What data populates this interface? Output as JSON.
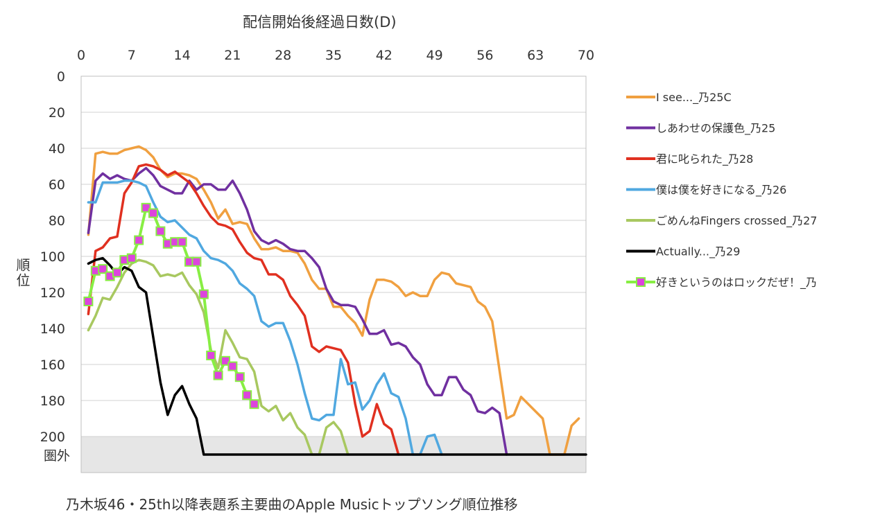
{
  "chart_data": {
    "type": "line",
    "title": "乃木坂46・25th以降表題系主要曲のApple Musicトップソング順位推移",
    "xlabel": "配信開始後経過日数(D)",
    "ylabel": "順位",
    "xlim": [
      0,
      70
    ],
    "ylim": [
      0,
      220
    ],
    "y_inverted": true,
    "x_ticks": [
      0,
      7,
      14,
      21,
      28,
      35,
      42,
      49,
      56,
      63,
      70
    ],
    "y_ticks": [
      0,
      20,
      40,
      60,
      80,
      100,
      120,
      140,
      160,
      180,
      200
    ],
    "out_of_rank_label": "圏外",
    "out_of_rank_value": 210,
    "out_of_rank_band": [
      200,
      220
    ],
    "legend_position": "right",
    "series": [
      {
        "name": "I see..._乃25C",
        "color": "#f0a040",
        "marker": "none",
        "points": [
          [
            1,
            88
          ],
          [
            2,
            43
          ],
          [
            3,
            42
          ],
          [
            4,
            43
          ],
          [
            5,
            43
          ],
          [
            6,
            41
          ],
          [
            7,
            40
          ],
          [
            8,
            39
          ],
          [
            9,
            41
          ],
          [
            10,
            45
          ],
          [
            11,
            52
          ],
          [
            12,
            56
          ],
          [
            13,
            54
          ],
          [
            14,
            54
          ],
          [
            15,
            55
          ],
          [
            16,
            57
          ],
          [
            17,
            63
          ],
          [
            18,
            70
          ],
          [
            19,
            79
          ],
          [
            20,
            74
          ],
          [
            21,
            82
          ],
          [
            22,
            81
          ],
          [
            23,
            82
          ],
          [
            24,
            90
          ],
          [
            25,
            96
          ],
          [
            26,
            96
          ],
          [
            27,
            95
          ],
          [
            28,
            97
          ],
          [
            29,
            97
          ],
          [
            30,
            98
          ],
          [
            31,
            104
          ],
          [
            32,
            113
          ],
          [
            33,
            118
          ],
          [
            34,
            118
          ],
          [
            35,
            128
          ],
          [
            36,
            128
          ],
          [
            37,
            133
          ],
          [
            38,
            137
          ],
          [
            39,
            144
          ],
          [
            40,
            124
          ],
          [
            41,
            113
          ],
          [
            42,
            113
          ],
          [
            43,
            114
          ],
          [
            44,
            117
          ],
          [
            45,
            122
          ],
          [
            46,
            120
          ],
          [
            47,
            122
          ],
          [
            48,
            122
          ],
          [
            49,
            113
          ],
          [
            50,
            109
          ],
          [
            51,
            110
          ],
          [
            52,
            115
          ],
          [
            53,
            116
          ],
          [
            54,
            117
          ],
          [
            55,
            125
          ],
          [
            56,
            128
          ],
          [
            57,
            136
          ],
          [
            58,
            163
          ],
          [
            59,
            190
          ],
          [
            60,
            188
          ],
          [
            61,
            178
          ],
          [
            62,
            182
          ],
          [
            63,
            186
          ],
          [
            64,
            190
          ],
          [
            65,
            210
          ],
          [
            66,
            210
          ],
          [
            67,
            210
          ],
          [
            68,
            194
          ],
          [
            69,
            190
          ]
        ]
      },
      {
        "name": "しあわせの保護色_乃25",
        "color": "#7030a0",
        "marker": "none",
        "points": [
          [
            1,
            87
          ],
          [
            2,
            58
          ],
          [
            3,
            54
          ],
          [
            4,
            57
          ],
          [
            5,
            55
          ],
          [
            6,
            57
          ],
          [
            7,
            58
          ],
          [
            8,
            54
          ],
          [
            9,
            51
          ],
          [
            10,
            55
          ],
          [
            11,
            61
          ],
          [
            12,
            63
          ],
          [
            13,
            65
          ],
          [
            14,
            65
          ],
          [
            15,
            58
          ],
          [
            16,
            63
          ],
          [
            17,
            60
          ],
          [
            18,
            60
          ],
          [
            19,
            63
          ],
          [
            20,
            63
          ],
          [
            21,
            58
          ],
          [
            22,
            65
          ],
          [
            23,
            74
          ],
          [
            24,
            86
          ],
          [
            25,
            91
          ],
          [
            26,
            93
          ],
          [
            27,
            91
          ],
          [
            28,
            93
          ],
          [
            29,
            96
          ],
          [
            30,
            97
          ],
          [
            31,
            97
          ],
          [
            32,
            101
          ],
          [
            33,
            106
          ],
          [
            34,
            118
          ],
          [
            35,
            125
          ],
          [
            36,
            127
          ],
          [
            37,
            127
          ],
          [
            38,
            128
          ],
          [
            39,
            135
          ],
          [
            40,
            143
          ],
          [
            41,
            143
          ],
          [
            42,
            141
          ],
          [
            43,
            149
          ],
          [
            44,
            148
          ],
          [
            45,
            150
          ],
          [
            46,
            156
          ],
          [
            47,
            160
          ],
          [
            48,
            171
          ],
          [
            49,
            177
          ],
          [
            50,
            177
          ],
          [
            51,
            167
          ],
          [
            52,
            167
          ],
          [
            53,
            174
          ],
          [
            54,
            177
          ],
          [
            55,
            186
          ],
          [
            56,
            187
          ],
          [
            57,
            184
          ],
          [
            58,
            187
          ],
          [
            59,
            210
          ]
        ]
      },
      {
        "name": "君に叱られた_乃28",
        "color": "#e03020",
        "marker": "none",
        "points": [
          [
            1,
            132
          ],
          [
            2,
            97
          ],
          [
            3,
            95
          ],
          [
            4,
            90
          ],
          [
            5,
            89
          ],
          [
            6,
            65
          ],
          [
            7,
            59
          ],
          [
            8,
            50
          ],
          [
            9,
            49
          ],
          [
            10,
            50
          ],
          [
            11,
            52
          ],
          [
            12,
            55
          ],
          [
            13,
            53
          ],
          [
            14,
            56
          ],
          [
            15,
            59
          ],
          [
            16,
            65
          ],
          [
            17,
            72
          ],
          [
            18,
            78
          ],
          [
            19,
            82
          ],
          [
            20,
            83
          ],
          [
            21,
            85
          ],
          [
            22,
            92
          ],
          [
            23,
            98
          ],
          [
            24,
            101
          ],
          [
            25,
            102
          ],
          [
            26,
            110
          ],
          [
            27,
            110
          ],
          [
            28,
            113
          ],
          [
            29,
            122
          ],
          [
            30,
            127
          ],
          [
            31,
            133
          ],
          [
            32,
            150
          ],
          [
            33,
            153
          ],
          [
            34,
            150
          ],
          [
            35,
            151
          ],
          [
            36,
            152
          ],
          [
            37,
            159
          ],
          [
            38,
            182
          ],
          [
            39,
            200
          ],
          [
            40,
            197
          ],
          [
            41,
            182
          ],
          [
            42,
            193
          ],
          [
            43,
            196
          ],
          [
            44,
            210
          ]
        ]
      },
      {
        "name": "僕は僕を好きになる_乃26",
        "color": "#50a8e0",
        "marker": "none",
        "points": [
          [
            1,
            70
          ],
          [
            2,
            70
          ],
          [
            3,
            59
          ],
          [
            4,
            59
          ],
          [
            5,
            59
          ],
          [
            6,
            58
          ],
          [
            7,
            58
          ],
          [
            8,
            59
          ],
          [
            9,
            61
          ],
          [
            10,
            70
          ],
          [
            11,
            78
          ],
          [
            12,
            81
          ],
          [
            13,
            80
          ],
          [
            14,
            84
          ],
          [
            15,
            88
          ],
          [
            16,
            90
          ],
          [
            17,
            97
          ],
          [
            18,
            101
          ],
          [
            19,
            102
          ],
          [
            20,
            104
          ],
          [
            21,
            108
          ],
          [
            22,
            115
          ],
          [
            23,
            118
          ],
          [
            24,
            122
          ],
          [
            25,
            136
          ],
          [
            26,
            139
          ],
          [
            27,
            137
          ],
          [
            28,
            137
          ],
          [
            29,
            147
          ],
          [
            30,
            160
          ],
          [
            31,
            176
          ],
          [
            32,
            190
          ],
          [
            33,
            191
          ],
          [
            34,
            188
          ],
          [
            35,
            188
          ],
          [
            36,
            157
          ],
          [
            37,
            171
          ],
          [
            38,
            170
          ],
          [
            39,
            185
          ],
          [
            40,
            180
          ],
          [
            41,
            171
          ],
          [
            42,
            165
          ],
          [
            43,
            176
          ],
          [
            44,
            178
          ],
          [
            45,
            190
          ],
          [
            46,
            210
          ],
          [
            47,
            210
          ],
          [
            48,
            200
          ],
          [
            49,
            199
          ],
          [
            50,
            210
          ]
        ]
      },
      {
        "name": "ごめんねFingers crossed_乃27",
        "color": "#a8c860",
        "marker": "none",
        "points": [
          [
            1,
            141
          ],
          [
            2,
            133
          ],
          [
            3,
            123
          ],
          [
            4,
            124
          ],
          [
            5,
            117
          ],
          [
            6,
            109
          ],
          [
            7,
            104
          ],
          [
            8,
            102
          ],
          [
            9,
            103
          ],
          [
            10,
            105
          ],
          [
            11,
            111
          ],
          [
            12,
            110
          ],
          [
            13,
            111
          ],
          [
            14,
            109
          ],
          [
            15,
            116
          ],
          [
            16,
            121
          ],
          [
            17,
            131
          ],
          [
            18,
            152
          ],
          [
            19,
            162
          ],
          [
            20,
            141
          ],
          [
            21,
            148
          ],
          [
            22,
            156
          ],
          [
            23,
            157
          ],
          [
            24,
            164
          ],
          [
            25,
            183
          ],
          [
            26,
            186
          ],
          [
            27,
            183
          ],
          [
            28,
            191
          ],
          [
            29,
            187
          ],
          [
            30,
            195
          ],
          [
            31,
            199
          ],
          [
            32,
            210
          ],
          [
            33,
            210
          ],
          [
            34,
            195
          ],
          [
            35,
            192
          ],
          [
            36,
            197
          ],
          [
            37,
            210
          ]
        ]
      },
      {
        "name": "Actually..._乃29",
        "color": "#000000",
        "marker": "none",
        "points": [
          [
            1,
            104
          ],
          [
            2,
            102
          ],
          [
            3,
            101
          ],
          [
            4,
            105
          ],
          [
            5,
            110
          ],
          [
            6,
            106
          ],
          [
            7,
            108
          ],
          [
            8,
            117
          ],
          [
            9,
            120
          ],
          [
            10,
            145
          ],
          [
            11,
            170
          ],
          [
            12,
            188
          ],
          [
            13,
            177
          ],
          [
            14,
            172
          ],
          [
            15,
            182
          ],
          [
            16,
            190
          ],
          [
            17,
            210
          ],
          [
            70,
            210
          ]
        ]
      },
      {
        "name": "好きというのはロックだぜ！_乃",
        "color": "#88ee44",
        "marker": "square",
        "marker_color": "#dd44dd",
        "points": [
          [
            1,
            125
          ],
          [
            2,
            108
          ],
          [
            3,
            107
          ],
          [
            4,
            111
          ],
          [
            5,
            109
          ],
          [
            6,
            102
          ],
          [
            7,
            101
          ],
          [
            8,
            91
          ],
          [
            9,
            73
          ],
          [
            10,
            76
          ],
          [
            11,
            86
          ],
          [
            12,
            93
          ],
          [
            13,
            92
          ],
          [
            14,
            92
          ],
          [
            15,
            103
          ],
          [
            16,
            103
          ],
          [
            17,
            121
          ],
          [
            18,
            155
          ],
          [
            19,
            166
          ],
          [
            20,
            158
          ],
          [
            21,
            161
          ],
          [
            22,
            167
          ],
          [
            23,
            177
          ],
          [
            24,
            182
          ]
        ]
      }
    ]
  }
}
